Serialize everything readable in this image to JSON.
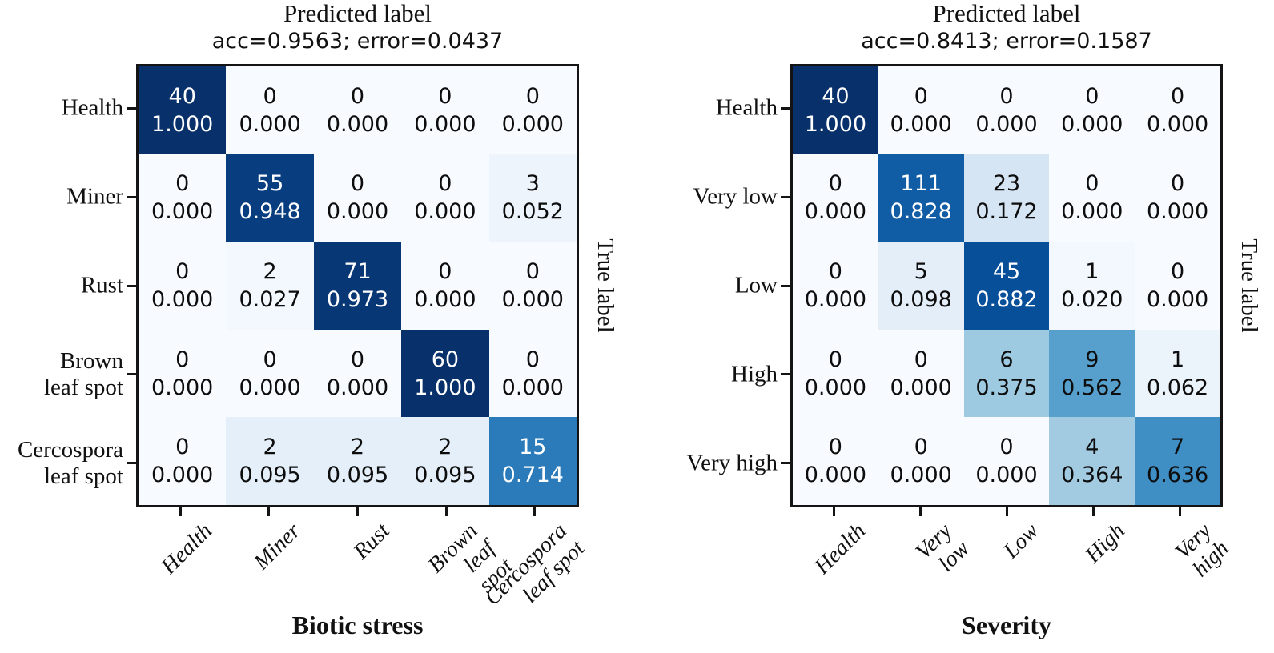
{
  "page": {
    "background": "#ffffff"
  },
  "style": {
    "border_color": "#141414",
    "dark_text": "#0d0d0d",
    "white_text": "#ffffff",
    "white_text_threshold": 0.7,
    "colormap_name": "Blues",
    "colormap_stops": [
      "#f7fbff",
      "#deebf7",
      "#c6dbef",
      "#9ecae1",
      "#6baed6",
      "#4292c6",
      "#2171b5",
      "#08519c",
      "#08306b"
    ]
  },
  "chart_data": [
    {
      "type": "heatmap",
      "title": "Predicted label",
      "subtitle": "acc=0.9563; error=0.0437",
      "xlabel": "Biotic stress",
      "ylabel": "True label",
      "x_categories": [
        "Health",
        "Miner",
        "Rust",
        "Brown\nleaf spot",
        "Cercospora\nleaf spot"
      ],
      "y_categories": [
        "Health",
        "Miner",
        "Rust",
        "Brown\nleaf spot",
        "Cercospora\nleaf spot"
      ],
      "counts": [
        [
          40,
          0,
          0,
          0,
          0
        ],
        [
          0,
          55,
          0,
          0,
          3
        ],
        [
          0,
          2,
          71,
          0,
          0
        ],
        [
          0,
          0,
          0,
          60,
          0
        ],
        [
          0,
          2,
          2,
          2,
          15
        ]
      ],
      "fractions": [
        [
          1.0,
          0.0,
          0.0,
          0.0,
          0.0
        ],
        [
          0.0,
          0.948,
          0.0,
          0.0,
          0.052
        ],
        [
          0.0,
          0.027,
          0.973,
          0.0,
          0.0
        ],
        [
          0.0,
          0.0,
          0.0,
          1.0,
          0.0
        ],
        [
          0.0,
          0.095,
          0.095,
          0.095,
          0.714
        ]
      ]
    },
    {
      "type": "heatmap",
      "title": "Predicted label",
      "subtitle": "acc=0.8413; error=0.1587",
      "xlabel": "Severity",
      "ylabel": "True label",
      "x_categories": [
        "Health",
        "Very low",
        "Low",
        "High",
        "Very high"
      ],
      "y_categories": [
        "Health",
        "Very low",
        "Low",
        "High",
        "Very high"
      ],
      "counts": [
        [
          40,
          0,
          0,
          0,
          0
        ],
        [
          0,
          111,
          23,
          0,
          0
        ],
        [
          0,
          5,
          45,
          1,
          0
        ],
        [
          0,
          0,
          6,
          9,
          1
        ],
        [
          0,
          0,
          0,
          4,
          7
        ]
      ],
      "fractions": [
        [
          1.0,
          0.0,
          0.0,
          0.0,
          0.0
        ],
        [
          0.0,
          0.828,
          0.172,
          0.0,
          0.0
        ],
        [
          0.0,
          0.098,
          0.882,
          0.02,
          0.0
        ],
        [
          0.0,
          0.0,
          0.375,
          0.562,
          0.062
        ],
        [
          0.0,
          0.0,
          0.0,
          0.364,
          0.636
        ]
      ]
    }
  ]
}
